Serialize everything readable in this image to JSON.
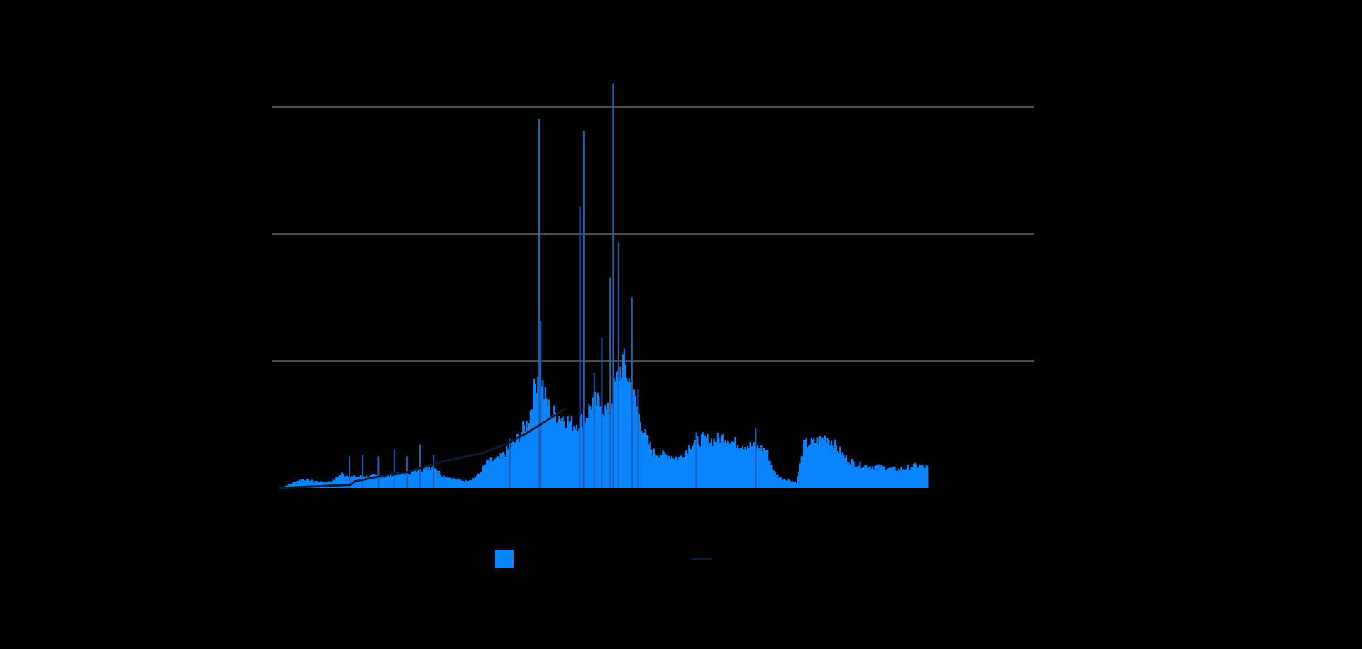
{
  "chart_data": {
    "type": "bar",
    "title": "",
    "xlabel": "",
    "ylabel": "",
    "ylim": [
      0,
      4.8
    ],
    "yticks": [
      1.6,
      3.2,
      4.8
    ],
    "grid": true,
    "legend_position": "bottom-center",
    "colors": {
      "bars": "#0a84ff",
      "spikes": "#1f5fb8",
      "line": "#0d1a33",
      "grid": "#9a9a9a",
      "background": "#000000"
    },
    "bar_anchors": [
      [
        0,
        0.0
      ],
      [
        0.006,
        0.02
      ],
      [
        0.012,
        0.04
      ],
      [
        0.02,
        0.08
      ],
      [
        0.03,
        0.11
      ],
      [
        0.045,
        0.09
      ],
      [
        0.06,
        0.07
      ],
      [
        0.072,
        0.1
      ],
      [
        0.082,
        0.18
      ],
      [
        0.094,
        0.14
      ],
      [
        0.11,
        0.15
      ],
      [
        0.125,
        0.16
      ],
      [
        0.14,
        0.14
      ],
      [
        0.155,
        0.17
      ],
      [
        0.17,
        0.19
      ],
      [
        0.19,
        0.24
      ],
      [
        0.205,
        0.28
      ],
      [
        0.215,
        0.16
      ],
      [
        0.23,
        0.12
      ],
      [
        0.245,
        0.09
      ],
      [
        0.255,
        0.11
      ],
      [
        0.265,
        0.18
      ],
      [
        0.275,
        0.33
      ],
      [
        0.29,
        0.36
      ],
      [
        0.31,
        0.55
      ],
      [
        0.33,
        0.85
      ],
      [
        0.34,
        1.35
      ],
      [
        0.345,
        1.55
      ],
      [
        0.35,
        1.2
      ],
      [
        0.36,
        0.95
      ],
      [
        0.375,
        0.9
      ],
      [
        0.39,
        0.8
      ],
      [
        0.405,
        0.88
      ],
      [
        0.415,
        1.1
      ],
      [
        0.425,
        1.05
      ],
      [
        0.435,
        0.95
      ],
      [
        0.445,
        1.3
      ],
      [
        0.455,
        1.6
      ],
      [
        0.465,
        1.3
      ],
      [
        0.475,
        0.95
      ],
      [
        0.485,
        0.65
      ],
      [
        0.495,
        0.45
      ],
      [
        0.51,
        0.42
      ],
      [
        0.53,
        0.38
      ],
      [
        0.545,
        0.55
      ],
      [
        0.56,
        0.62
      ],
      [
        0.575,
        0.6
      ],
      [
        0.59,
        0.65
      ],
      [
        0.6,
        0.58
      ],
      [
        0.615,
        0.55
      ],
      [
        0.63,
        0.52
      ],
      [
        0.645,
        0.48
      ],
      [
        0.655,
        0.2
      ],
      [
        0.665,
        0.12
      ],
      [
        0.675,
        0.1
      ],
      [
        0.685,
        0.07
      ],
      [
        0.695,
        0.55
      ],
      [
        0.71,
        0.58
      ],
      [
        0.725,
        0.65
      ],
      [
        0.735,
        0.55
      ],
      [
        0.75,
        0.38
      ],
      [
        0.765,
        0.3
      ],
      [
        0.78,
        0.28
      ],
      [
        0.8,
        0.26
      ],
      [
        0.82,
        0.23
      ],
      [
        0.84,
        0.28
      ],
      [
        0.86,
        0.26
      ]
    ],
    "spikes": [
      {
        "t": 0.094,
        "v": 0.4
      },
      {
        "t": 0.111,
        "v": 0.42
      },
      {
        "t": 0.132,
        "v": 0.4
      },
      {
        "t": 0.153,
        "v": 0.48
      },
      {
        "t": 0.17,
        "v": 0.4
      },
      {
        "t": 0.187,
        "v": 0.55
      },
      {
        "t": 0.205,
        "v": 0.42
      },
      {
        "t": 0.306,
        "v": 0.62
      },
      {
        "t": 0.345,
        "v": 4.65
      },
      {
        "t": 0.347,
        "v": 2.1
      },
      {
        "t": 0.399,
        "v": 3.55
      },
      {
        "t": 0.404,
        "v": 4.5
      },
      {
        "t": 0.418,
        "v": 1.45
      },
      {
        "t": 0.428,
        "v": 1.9
      },
      {
        "t": 0.439,
        "v": 2.65
      },
      {
        "t": 0.443,
        "v": 5.1
      },
      {
        "t": 0.45,
        "v": 3.1
      },
      {
        "t": 0.468,
        "v": 2.4
      },
      {
        "t": 0.476,
        "v": 1.25
      },
      {
        "t": 0.553,
        "v": 0.7
      },
      {
        "t": 0.632,
        "v": 0.75
      }
    ],
    "series": [
      {
        "points": [
          [
            0.0,
            0.0
          ],
          [
            0.05,
            0.02
          ],
          [
            0.095,
            0.04
          ],
          [
            0.1,
            0.08
          ],
          [
            0.13,
            0.14
          ],
          [
            0.15,
            0.18
          ],
          [
            0.17,
            0.2
          ],
          [
            0.19,
            0.26
          ],
          [
            0.22,
            0.34
          ],
          [
            0.25,
            0.4
          ],
          [
            0.27,
            0.44
          ],
          [
            0.3,
            0.55
          ],
          [
            0.33,
            0.7
          ],
          [
            0.355,
            0.85
          ],
          [
            0.38,
            1.0
          ]
        ]
      }
    ]
  }
}
